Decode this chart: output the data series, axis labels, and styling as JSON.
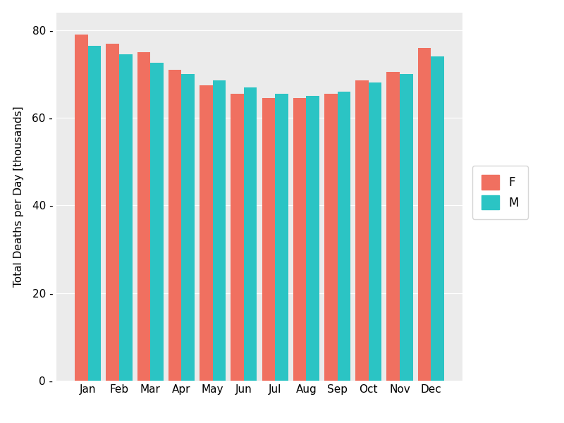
{
  "months": [
    "Jan",
    "Feb",
    "Mar",
    "Apr",
    "May",
    "Jun",
    "Jul",
    "Aug",
    "Sep",
    "Oct",
    "Nov",
    "Dec"
  ],
  "F": [
    79.0,
    77.0,
    75.0,
    71.0,
    67.5,
    65.5,
    64.5,
    64.5,
    65.5,
    68.5,
    70.5,
    76.0
  ],
  "M": [
    76.5,
    74.5,
    72.5,
    70.0,
    68.5,
    67.0,
    65.5,
    65.0,
    66.0,
    68.0,
    70.0,
    74.0
  ],
  "color_F": "#F07060",
  "color_M": "#2BC4C4",
  "ylabel": "Total Deaths per Day [thousands]",
  "ylim": [
    0,
    84
  ],
  "yticks": [
    0,
    20,
    40,
    60,
    80
  ],
  "bar_width": 0.42,
  "background_color": "#ffffff",
  "panel_bg": "#ebebeb",
  "grid_color": "#ffffff"
}
